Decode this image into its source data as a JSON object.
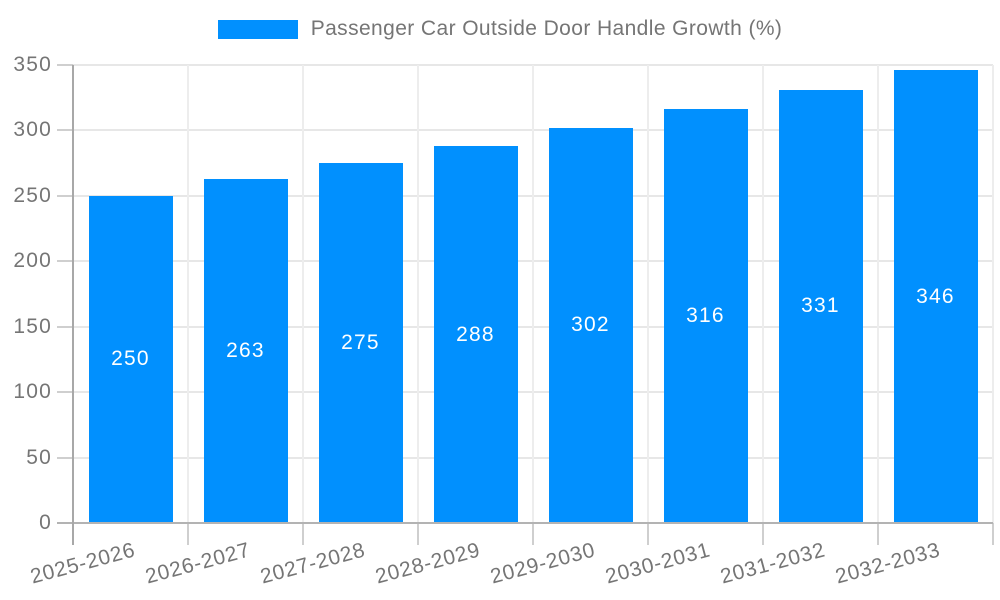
{
  "chart_data": {
    "type": "bar",
    "title": "Passenger Car Outside Door Handle Growth (%)",
    "categories": [
      "2025-2026",
      "2026-2027",
      "2027-2028",
      "2028-2029",
      "2029-2030",
      "2030-2031",
      "2031-2032",
      "2032-2033"
    ],
    "values": [
      250,
      263,
      275,
      288,
      302,
      316,
      331,
      346
    ],
    "series": [
      {
        "name": "Passenger Car Outside Door Handle Growth (%)",
        "values": [
          250,
          263,
          275,
          288,
          302,
          316,
          331,
          346
        ]
      }
    ],
    "xlabel": "",
    "ylabel": "",
    "ylim": [
      0,
      350
    ],
    "yticks": [
      0,
      50,
      100,
      150,
      200,
      250,
      300,
      350
    ],
    "grid": true,
    "legend_position": "top-center",
    "value_labels": "centered-inside-bars",
    "colors": {
      "bar": "#0190fe",
      "value_label": "#ffffff",
      "axis_text": "#757575",
      "gridline_h": "#e7e7e7",
      "gridline_v": "#ededed",
      "baseline": "#b3b3b3",
      "axis_line": "#a8a8a8",
      "background": "#ffffff"
    }
  }
}
